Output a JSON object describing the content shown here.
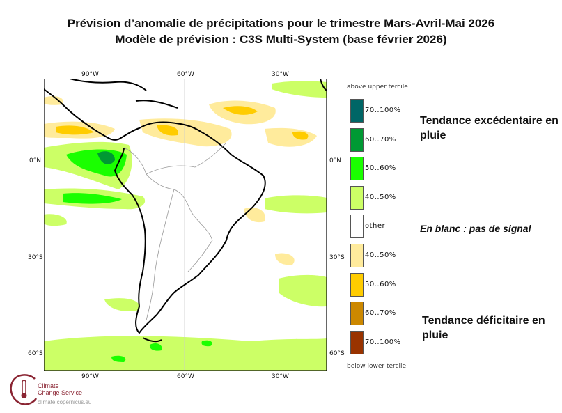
{
  "title": {
    "line1": "Prévision d’anomalie de précipitations pour le trimestre Mars-Avril-Mai 2026",
    "line2": "Modèle de prévision : C3S Multi-System (base février 2026)"
  },
  "map": {
    "lon_ticks": [
      "90°W",
      "60°W",
      "30°W"
    ],
    "lat_ticks": [
      "0°N",
      "30°S",
      "60°S"
    ]
  },
  "legend": {
    "top_caption": "above upper tercile",
    "bottom_caption": "below lower tercile",
    "items": [
      {
        "label": "70..100%",
        "color": "#006666"
      },
      {
        "label": "60..70%",
        "color": "#009933"
      },
      {
        "label": "50..60%",
        "color": "#1aff00"
      },
      {
        "label": "40..50%",
        "color": "#ccff66"
      },
      {
        "label": "other",
        "color": "#ffffff"
      },
      {
        "label": "40..50%",
        "color": "#ffeb9c"
      },
      {
        "label": "50..60%",
        "color": "#ffcc00"
      },
      {
        "label": "60..70%",
        "color": "#cc8800"
      },
      {
        "label": "70..100%",
        "color": "#993300"
      }
    ]
  },
  "notes": {
    "wet": "Tendance excédentaire en pluie",
    "none": "En blanc : pas de signal",
    "dry": "Tendance déficitaire en pluie"
  },
  "logo": {
    "line1": "Climate",
    "line2": "Change Service",
    "url": "climate.copernicus.eu"
  }
}
